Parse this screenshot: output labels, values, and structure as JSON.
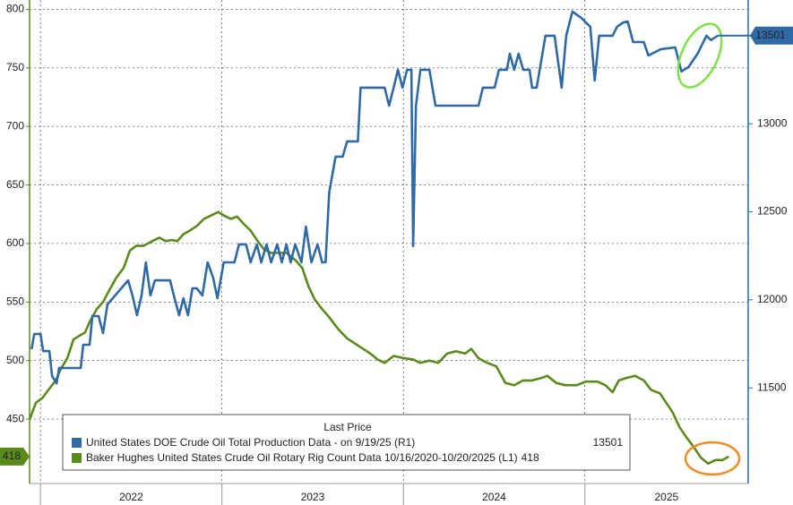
{
  "chart_data": {
    "type": "line",
    "legend_title": "Last Price",
    "xlim": [
      2021.94,
      2025.9
    ],
    "xticks": [
      2022,
      2023,
      2024,
      2025
    ],
    "ylim": [
      395,
      808
    ],
    "yticks": [
      450,
      500,
      550,
      600,
      650,
      700,
      750,
      800
    ],
    "y2lim": [
      10957,
      13703
    ],
    "y2ticks": [
      11500,
      12000,
      12500,
      13000
    ],
    "grid": true,
    "series": [
      {
        "name": "United States DOE Crude Oil Total Production Data - on 9/19/25 (R1)",
        "color": "#2f6aa6",
        "axis": "y2",
        "value_label": "13501",
        "x": [
          2021.951,
          2021.966,
          2022.0,
          2022.015,
          2022.049,
          2022.064,
          2022.089,
          2022.103,
          2022.222,
          2022.236,
          2022.271,
          2022.286,
          2022.32,
          2022.345,
          2022.369,
          2022.483,
          2022.507,
          2022.532,
          2022.557,
          2022.581,
          2022.606,
          2022.631,
          2022.714,
          2022.739,
          2022.764,
          2022.788,
          2022.813,
          2022.837,
          2022.862,
          2022.892,
          2022.921,
          2022.951,
          2022.975,
          2023.01,
          2023.069,
          2023.094,
          2023.133,
          2023.158,
          2023.192,
          2023.217,
          2023.246,
          2023.271,
          2023.305,
          2023.33,
          2023.355,
          2023.379,
          2023.404,
          2023.438,
          2023.463,
          2023.493,
          2023.527,
          2023.552,
          2023.571,
          2023.591,
          2023.626,
          2023.665,
          2023.69,
          2023.749,
          2023.764,
          2023.897,
          2023.921,
          2023.946,
          2023.97,
          2023.995,
          2024.02,
          2024.044,
          2024.054,
          2024.069,
          2024.094,
          2024.143,
          2024.177,
          2024.414,
          2024.438,
          2024.502,
          2024.527,
          2024.571,
          2024.586,
          2024.611,
          2024.635,
          2024.66,
          2024.695,
          2024.709,
          2024.734,
          2024.783,
          2024.833,
          2024.872,
          2024.897,
          2024.931,
          2024.98,
          2025.03,
          2025.054,
          2025.079,
          2025.153,
          2025.177,
          2025.212,
          2025.236,
          2025.266,
          2025.325,
          2025.35,
          2025.419,
          2025.498,
          2025.532,
          2025.571,
          2025.621,
          2025.67,
          2025.695,
          2025.734
        ],
        "values": [
          11720,
          11806,
          11806,
          11709,
          11709,
          11567,
          11526,
          11613,
          11613,
          11745,
          11745,
          11908,
          11908,
          11811,
          11974,
          12111,
          12025,
          11913,
          12025,
          12213,
          12025,
          12111,
          12111,
          12009,
          11913,
          12009,
          11913,
          12065,
          12065,
          12025,
          12213,
          12127,
          12009,
          12213,
          12213,
          12315,
          12315,
          12213,
          12315,
          12213,
          12315,
          12213,
          12315,
          12213,
          12315,
          12213,
          12315,
          12213,
          12416,
          12213,
          12315,
          12213,
          12213,
          12610,
          12813,
          12813,
          12900,
          12900,
          13205,
          13205,
          13103,
          13205,
          13307,
          13205,
          13307,
          13307,
          12305,
          13103,
          13307,
          13307,
          13103,
          13103,
          13205,
          13205,
          13307,
          13307,
          13398,
          13307,
          13398,
          13307,
          13307,
          13205,
          13205,
          13500,
          13500,
          13205,
          13500,
          13637,
          13602,
          13551,
          13246,
          13500,
          13500,
          13551,
          13576,
          13581,
          13464,
          13464,
          13388,
          13424,
          13434,
          13297,
          13322,
          13398,
          13500,
          13475,
          13501
        ]
      },
      {
        "name": "Baker Hughes United States Crude Oil Rotary Rig Count Data 10/16/2020-10/20/2025 (L1)",
        "color": "#5b8a1c",
        "axis": "y",
        "value_label": "418",
        "x": [
          2021.941,
          2021.975,
          2022.01,
          2022.049,
          2022.084,
          2022.113,
          2022.148,
          2022.182,
          2022.212,
          2022.246,
          2022.271,
          2022.31,
          2022.345,
          2022.379,
          2022.419,
          2022.458,
          2022.493,
          2022.527,
          2022.567,
          2022.591,
          2022.616,
          2022.655,
          2022.69,
          2022.724,
          2022.754,
          2022.788,
          2022.823,
          2022.862,
          2022.901,
          2022.941,
          2022.98,
          2023.01,
          2023.049,
          2023.084,
          2023.118,
          2023.158,
          2023.197,
          2023.232,
          2023.271,
          2023.305,
          2023.355,
          2023.404,
          2023.443,
          2023.478,
          2023.512,
          2023.552,
          2023.591,
          2023.64,
          2023.69,
          2023.739,
          2023.778,
          2023.818,
          2023.857,
          2023.897,
          2023.946,
          2024.005,
          2024.054,
          2024.094,
          2024.143,
          2024.192,
          2024.241,
          2024.291,
          2024.34,
          2024.374,
          2024.414,
          2024.463,
          2024.512,
          2024.562,
          2024.611,
          2024.66,
          2024.709,
          2024.759,
          2024.793,
          2024.842,
          2024.892,
          2024.956,
          2025.005,
          2025.069,
          2025.113,
          2025.153,
          2025.187,
          2025.227,
          2025.276,
          2025.325,
          2025.365,
          2025.414,
          2025.448,
          2025.483,
          2025.522,
          2025.562,
          2025.601,
          2025.64,
          2025.68,
          2025.719,
          2025.759,
          2025.793
        ],
        "values": [
          450,
          464,
          468,
          476,
          483,
          493,
          502,
          518,
          521,
          524,
          533,
          544,
          550,
          560,
          571,
          579,
          594,
          598,
          598,
          600,
          602,
          605,
          602,
          603,
          602,
          608,
          611,
          615,
          621,
          624,
          627,
          624,
          621,
          623,
          617,
          611,
          602,
          595,
          592,
          592,
          592,
          586,
          579,
          563,
          552,
          544,
          537,
          527,
          519,
          514,
          510,
          506,
          501,
          498,
          504,
          502,
          501,
          498,
          500,
          498,
          506,
          508,
          506,
          510,
          502,
          498,
          495,
          481,
          479,
          483,
          483,
          485,
          487,
          481,
          479,
          479,
          482,
          482,
          479,
          473,
          483,
          485,
          487,
          483,
          475,
          472,
          464,
          456,
          443,
          434,
          426,
          417,
          412,
          415,
          415,
          418
        ]
      }
    ]
  }
}
